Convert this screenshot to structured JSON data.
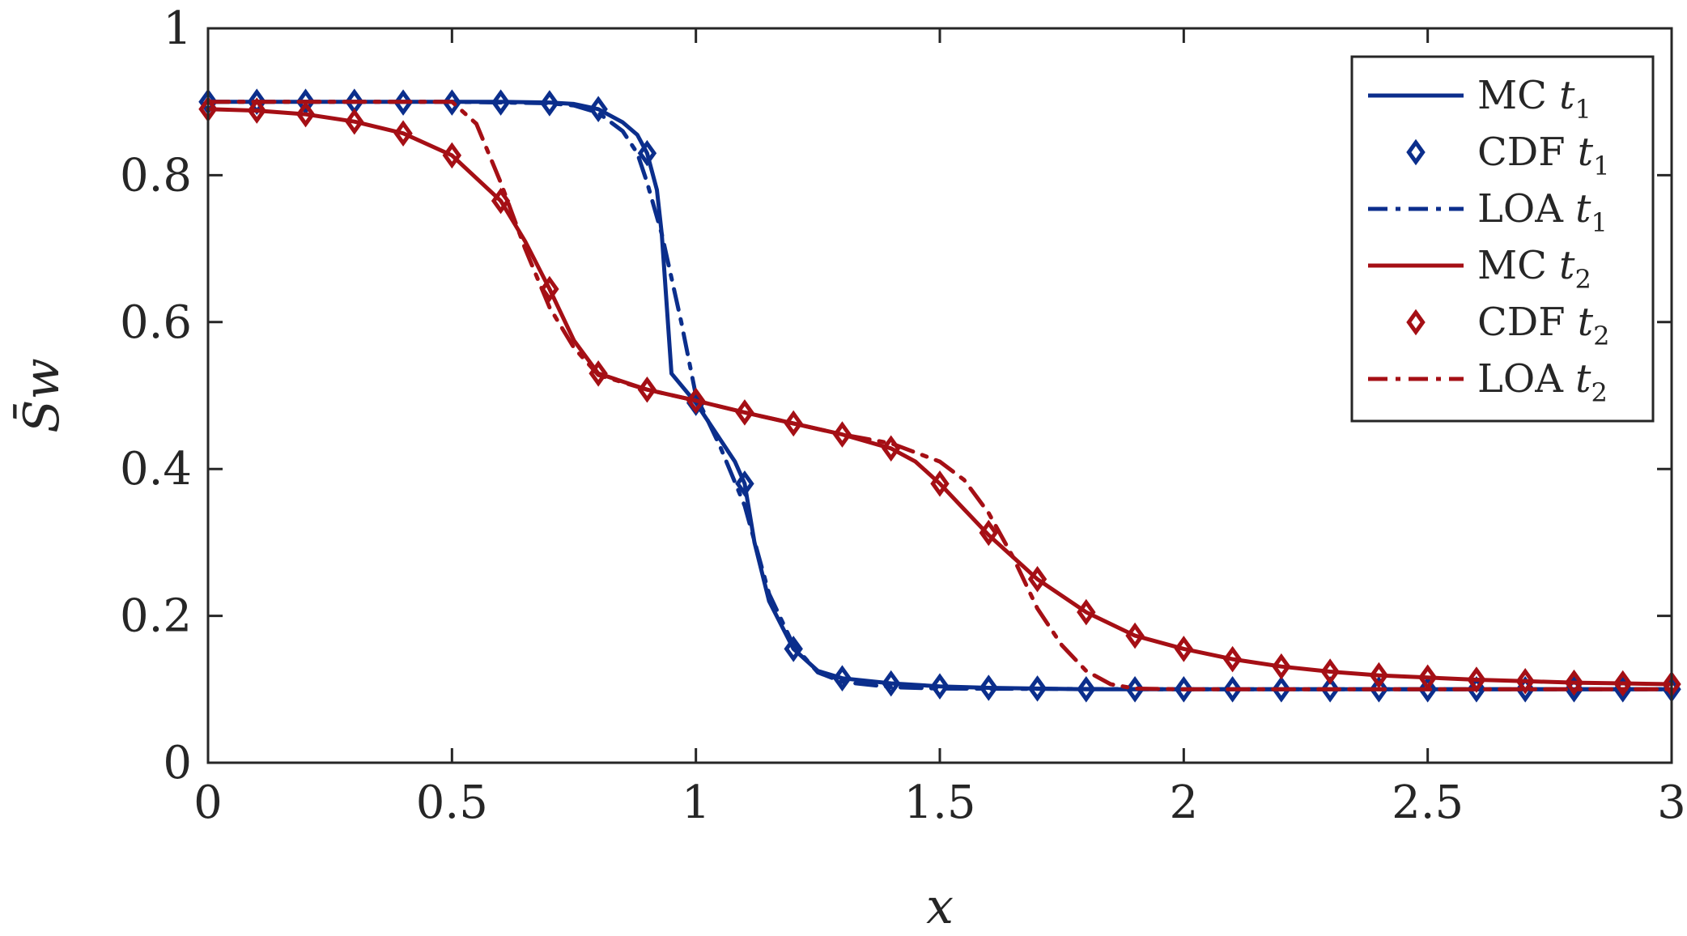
{
  "chart_data": {
    "type": "line",
    "xlabel": "x",
    "ylabel": "S̄w",
    "xlim": [
      0,
      3
    ],
    "ylim": [
      0,
      1
    ],
    "xticks": [
      0,
      0.5,
      1,
      1.5,
      2,
      2.5,
      3
    ],
    "xtick_labels": [
      "0",
      "0.5",
      "1",
      "1.5",
      "2",
      "2.5",
      "3"
    ],
    "yticks": [
      0,
      0.2,
      0.4,
      0.6,
      0.8,
      1
    ],
    "ytick_labels": [
      "0",
      "0.2",
      "0.4",
      "0.6",
      "0.8",
      "1"
    ],
    "grid": false,
    "legend_position": "top-right",
    "colors": {
      "blue": "#0b2e8c",
      "red": "#a50f15",
      "axis": "#262626"
    },
    "series": [
      {
        "name": "MC t1",
        "label_main": "MC ",
        "label_sub": "1",
        "color": "#0b2e8c",
        "style": "solid",
        "x": [
          0,
          0.1,
          0.2,
          0.3,
          0.4,
          0.5,
          0.6,
          0.7,
          0.75,
          0.8,
          0.85,
          0.88,
          0.9,
          0.92,
          0.93,
          0.95,
          1.0,
          1.05,
          1.08,
          1.1,
          1.12,
          1.15,
          1.2,
          1.25,
          1.3,
          1.4,
          1.5,
          1.6,
          1.7,
          1.8,
          1.9,
          2.0,
          2.5,
          3.0
        ],
        "y": [
          0.9,
          0.9,
          0.9,
          0.9,
          0.9,
          0.9,
          0.9,
          0.899,
          0.897,
          0.89,
          0.872,
          0.855,
          0.83,
          0.78,
          0.72,
          0.53,
          0.49,
          0.44,
          0.41,
          0.38,
          0.3,
          0.22,
          0.155,
          0.125,
          0.115,
          0.108,
          0.104,
          0.102,
          0.101,
          0.1,
          0.1,
          0.1,
          0.1,
          0.1
        ]
      },
      {
        "name": "CDF t1",
        "label_main": "CDF ",
        "label_sub": "1",
        "color": "#0b2e8c",
        "style": "marker",
        "x": [
          0,
          0.1,
          0.2,
          0.3,
          0.4,
          0.5,
          0.6,
          0.7,
          0.8,
          0.9,
          1.0,
          1.1,
          1.2,
          1.3,
          1.4,
          1.5,
          1.6,
          1.7,
          1.8,
          1.9,
          2.0,
          2.1,
          2.2,
          2.3,
          2.4,
          2.5,
          2.6,
          2.7,
          2.8,
          2.9,
          3.0
        ],
        "y": [
          0.9,
          0.9,
          0.9,
          0.9,
          0.899,
          0.899,
          0.899,
          0.898,
          0.89,
          0.83,
          0.49,
          0.38,
          0.155,
          0.115,
          0.108,
          0.104,
          0.102,
          0.101,
          0.1,
          0.1,
          0.1,
          0.1,
          0.1,
          0.1,
          0.1,
          0.1,
          0.1,
          0.1,
          0.1,
          0.1,
          0.1
        ]
      },
      {
        "name": "LOA t1",
        "label_main": "LOA ",
        "label_sub": "1",
        "color": "#0b2e8c",
        "style": "dashdot",
        "x": [
          0,
          0.5,
          0.7,
          0.75,
          0.8,
          0.85,
          0.88,
          0.9,
          0.93,
          0.97,
          1.0,
          1.05,
          1.1,
          1.15,
          1.2,
          1.25,
          1.3,
          1.4,
          1.5,
          2.0,
          3.0
        ],
        "y": [
          0.9,
          0.9,
          0.898,
          0.895,
          0.885,
          0.86,
          0.83,
          0.79,
          0.72,
          0.6,
          0.5,
          0.43,
          0.35,
          0.23,
          0.16,
          0.123,
          0.11,
          0.103,
          0.101,
          0.1,
          0.1
        ]
      },
      {
        "name": "MC t2",
        "label_main": "MC ",
        "label_sub": "2",
        "color": "#a50f15",
        "style": "solid",
        "x": [
          0,
          0.1,
          0.2,
          0.3,
          0.4,
          0.5,
          0.6,
          0.65,
          0.7,
          0.75,
          0.8,
          0.9,
          1.0,
          1.1,
          1.2,
          1.3,
          1.4,
          1.45,
          1.5,
          1.55,
          1.6,
          1.65,
          1.7,
          1.8,
          1.9,
          2.0,
          2.1,
          2.2,
          2.3,
          2.4,
          2.5,
          2.6,
          2.7,
          2.8,
          2.9,
          3.0
        ],
        "y": [
          0.89,
          0.888,
          0.883,
          0.873,
          0.857,
          0.827,
          0.765,
          0.71,
          0.645,
          0.575,
          0.53,
          0.508,
          0.493,
          0.477,
          0.462,
          0.447,
          0.428,
          0.41,
          0.38,
          0.345,
          0.31,
          0.28,
          0.25,
          0.205,
          0.173,
          0.155,
          0.141,
          0.131,
          0.124,
          0.119,
          0.116,
          0.113,
          0.111,
          0.109,
          0.108,
          0.107
        ]
      },
      {
        "name": "CDF t2",
        "label_main": "CDF ",
        "label_sub": "2",
        "color": "#a50f15",
        "style": "marker",
        "x": [
          0,
          0.1,
          0.2,
          0.3,
          0.4,
          0.5,
          0.6,
          0.7,
          0.8,
          0.9,
          1.0,
          1.1,
          1.2,
          1.3,
          1.4,
          1.5,
          1.6,
          1.7,
          1.8,
          1.9,
          2.0,
          2.1,
          2.2,
          2.3,
          2.4,
          2.5,
          2.6,
          2.7,
          2.8,
          2.9,
          3.0
        ],
        "y": [
          0.89,
          0.888,
          0.883,
          0.873,
          0.857,
          0.827,
          0.765,
          0.645,
          0.53,
          0.508,
          0.493,
          0.477,
          0.462,
          0.447,
          0.428,
          0.38,
          0.313,
          0.25,
          0.205,
          0.173,
          0.155,
          0.141,
          0.131,
          0.124,
          0.119,
          0.116,
          0.113,
          0.111,
          0.109,
          0.108,
          0.107
        ]
      },
      {
        "name": "LOA t2",
        "label_main": "LOA ",
        "label_sub": "2",
        "color": "#a50f15",
        "style": "dashdot",
        "x": [
          0,
          0.5,
          0.55,
          0.6,
          0.65,
          0.7,
          0.75,
          0.8,
          0.9,
          1.0,
          1.1,
          1.2,
          1.3,
          1.4,
          1.5,
          1.55,
          1.6,
          1.65,
          1.7,
          1.75,
          1.8,
          1.85,
          1.9,
          2.0,
          3.0
        ],
        "y": [
          0.9,
          0.9,
          0.87,
          0.79,
          0.7,
          0.62,
          0.565,
          0.528,
          0.508,
          0.493,
          0.477,
          0.462,
          0.447,
          0.435,
          0.41,
          0.385,
          0.34,
          0.28,
          0.21,
          0.16,
          0.125,
          0.107,
          0.101,
          0.1,
          0.1
        ]
      }
    ]
  }
}
